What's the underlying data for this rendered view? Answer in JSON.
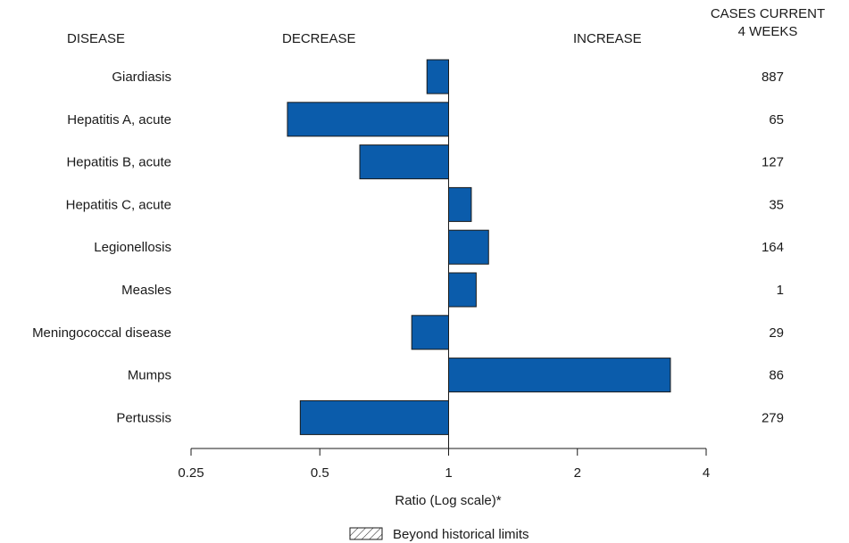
{
  "chart_data": {
    "type": "bar",
    "orientation": "horizontal",
    "baseline": 1,
    "scale": "log",
    "xlim": [
      0.25,
      4
    ],
    "xticks": [
      "0.25",
      "0.5",
      "1",
      "2",
      "4"
    ],
    "xlabel": "Ratio (Log scale)*",
    "header_disease": "DISEASE",
    "header_decrease": "DECREASE",
    "header_increase": "INCREASE",
    "header_cases_line1": "CASES CURRENT",
    "header_cases_line2": "4 WEEKS",
    "legend_label": "Beyond historical limits",
    "bar_color": "#0b5cab",
    "categories": [
      "Giardiasis",
      "Hepatitis A, acute",
      "Hepatitis B, acute",
      "Hepatitis C, acute",
      "Legionellosis",
      "Measles",
      "Meningococcal disease",
      "Mumps",
      "Pertussis"
    ],
    "values": [
      0.89,
      0.42,
      0.62,
      1.13,
      1.24,
      1.16,
      0.82,
      3.3,
      0.45
    ],
    "cases": [
      "887",
      "65",
      "127",
      "35",
      "164",
      "1",
      "29",
      "86",
      "279"
    ]
  }
}
